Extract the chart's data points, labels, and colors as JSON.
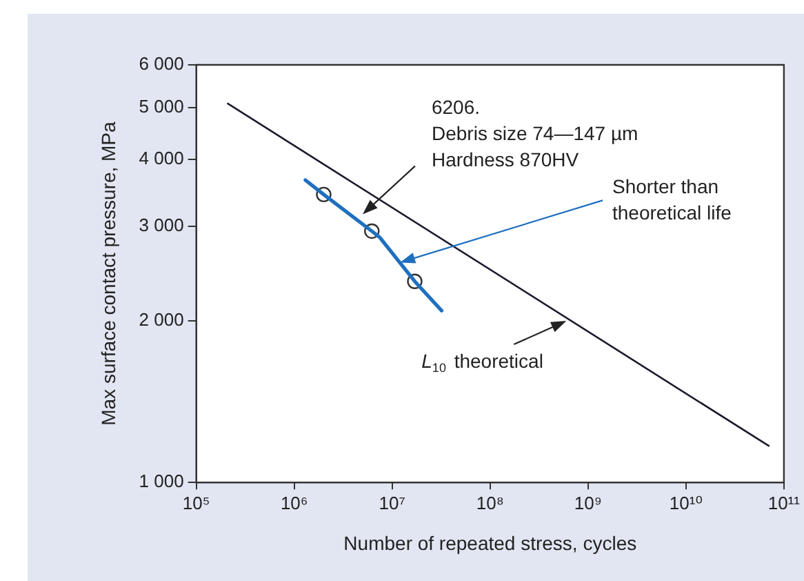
{
  "chart_data": {
    "type": "line",
    "xlabel": "Number of repeated stress, cycles",
    "ylabel": "Max surface contact pressure, MPa",
    "log": "xy",
    "grid": false,
    "legend": false,
    "xlim": [
      100000,
      100000000000
    ],
    "xticks": [
      {
        "value": 100000,
        "label": "10⁵"
      },
      {
        "value": 1000000,
        "label": "10⁶"
      },
      {
        "value": 10000000,
        "label": "10⁷"
      },
      {
        "value": 100000000,
        "label": "10⁸"
      },
      {
        "value": 1000000000,
        "label": "10⁹"
      },
      {
        "value": 10000000000,
        "label": "10¹⁰"
      },
      {
        "value": 100000000000,
        "label": "10¹¹"
      }
    ],
    "ylim": [
      1000,
      6000
    ],
    "yticks": [
      {
        "value": 1000,
        "label": "1 000"
      },
      {
        "value": 2000,
        "label": "2 000"
      },
      {
        "value": 3000,
        "label": "3 000"
      },
      {
        "value": 4000,
        "label": "4 000"
      },
      {
        "value": 5000,
        "label": "5 000"
      },
      {
        "value": 6000,
        "label": "6 000"
      }
    ],
    "series": [
      {
        "color": "#1a1a2e",
        "marker": "none",
        "x": [
          210000,
          70000000000
        ],
        "values": [
          5080,
          1170
        ]
      },
      {
        "color": "#1f6fbf",
        "marker": "none",
        "x": [
          1300000,
          2000000,
          6200000,
          7500000,
          17000000,
          32000000
        ],
        "values": [
          3660,
          3440,
          2940,
          2860,
          2370,
          2090
        ]
      },
      {
        "type": "scatter",
        "color": "#333333",
        "marker": "circle",
        "x": [
          2000000,
          6200000,
          17000000
        ],
        "values": [
          3440,
          2940,
          2370
        ]
      }
    ],
    "annotations": [
      {
        "text": "6206.\nDebris size 74—147 µm\nHardness 870HV",
        "x": 5000000,
        "y": 3160
      },
      {
        "text": "Shorter than\ntheoretical life",
        "x": 12000000,
        "y": 2570
      },
      {
        "text": "L$_{10}$ theoretical",
        "x": 600000000,
        "y": 2000
      }
    ]
  }
}
